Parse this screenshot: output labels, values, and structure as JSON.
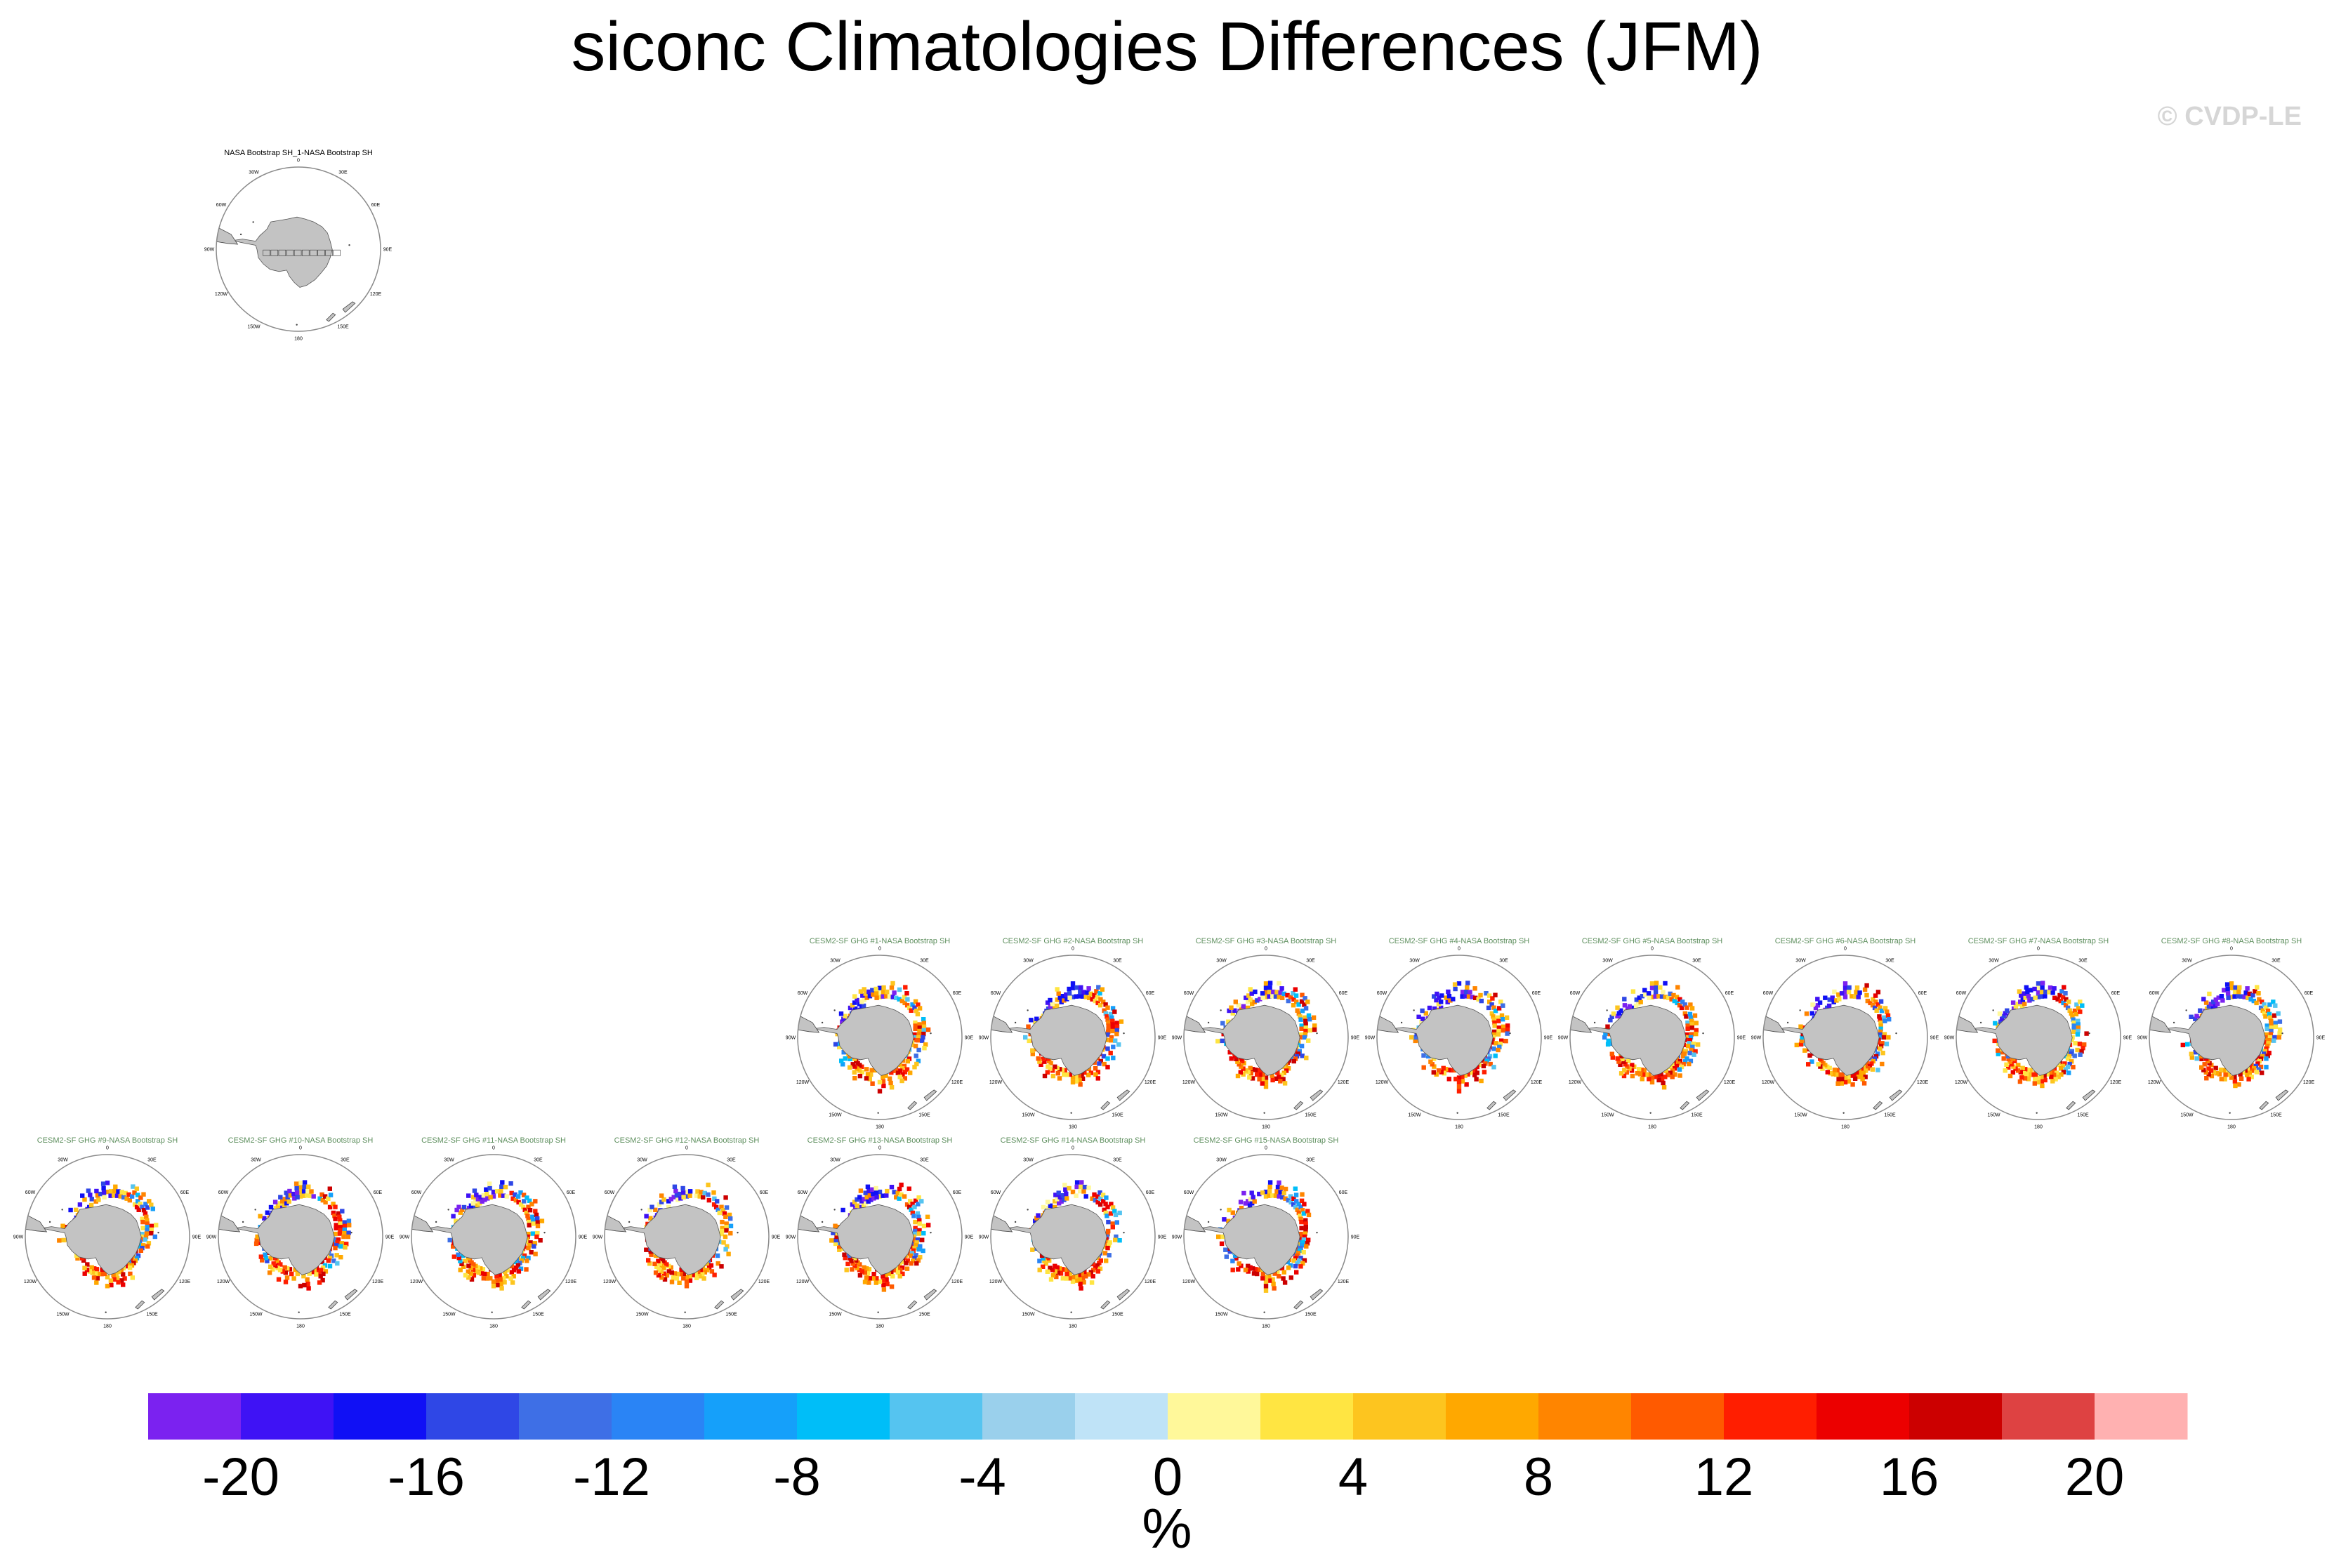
{
  "figure": {
    "title": "siconc Climatologies Differences (JFM)",
    "watermark": "© CVDP-LE"
  },
  "chart_data": {
    "type": "heatmap",
    "projection": "south-polar-stereographic",
    "variable": "siconc",
    "season": "JFM",
    "units": "%",
    "colorbar": {
      "levels": [
        -22,
        -20,
        -18,
        -16,
        -14,
        -12,
        -10,
        -8,
        -6,
        -4,
        -2,
        0,
        2,
        4,
        6,
        8,
        10,
        12,
        14,
        16,
        18,
        20,
        22
      ],
      "tick_labels": [
        "-20",
        "-16",
        "-12",
        "-8",
        "-4",
        "0",
        "4",
        "8",
        "12",
        "16",
        "20"
      ],
      "tick_values": [
        -20,
        -16,
        -12,
        -8,
        -4,
        0,
        4,
        8,
        12,
        16,
        20
      ],
      "colors": [
        "#7b22f0",
        "#3f12f5",
        "#1010f5",
        "#2f47e6",
        "#3e6fe6",
        "#2a84f5",
        "#15a0fa",
        "#00bef8",
        "#55c4f0",
        "#9ad0ec",
        "#bfe3f7",
        "#fff89a",
        "#ffe542",
        "#fdc51f",
        "#ffa800",
        "#ff8500",
        "#ff5a00",
        "#ff1e00",
        "#ec0000",
        "#cc0000",
        "#de4242",
        "#ffb1b1"
      ],
      "label": "%"
    },
    "lon_labels": [
      "0",
      "30E",
      "60E",
      "90E",
      "120E",
      "150E",
      "180",
      "150W",
      "120W",
      "90W",
      "60W",
      "30W"
    ],
    "panels": [
      {
        "title": "NASA Bootstrap SH_1-NASA Bootstrap SH",
        "type": "obs"
      },
      {
        "title": "CESM2-SF GHG #1-NASA Bootstrap SH",
        "type": "member"
      },
      {
        "title": "CESM2-SF GHG #2-NASA Bootstrap SH",
        "type": "member"
      },
      {
        "title": "CESM2-SF GHG #3-NASA Bootstrap SH",
        "type": "member"
      },
      {
        "title": "CESM2-SF GHG #4-NASA Bootstrap SH",
        "type": "member"
      },
      {
        "title": "CESM2-SF GHG #5-NASA Bootstrap SH",
        "type": "member"
      },
      {
        "title": "CESM2-SF GHG #6-NASA Bootstrap SH",
        "type": "member"
      },
      {
        "title": "CESM2-SF GHG #7-NASA Bootstrap SH",
        "type": "member"
      },
      {
        "title": "CESM2-SF GHG #8-NASA Bootstrap SH",
        "type": "member"
      },
      {
        "title": "CESM2-SF GHG #9-NASA Bootstrap SH",
        "type": "member"
      },
      {
        "title": "CESM2-SF GHG #10-NASA Bootstrap SH",
        "type": "member"
      },
      {
        "title": "CESM2-SF GHG #11-NASA Bootstrap SH",
        "type": "member"
      },
      {
        "title": "CESM2-SF GHG #12-NASA Bootstrap SH",
        "type": "member"
      },
      {
        "title": "CESM2-SF GHG #13-NASA Bootstrap SH",
        "type": "member"
      },
      {
        "title": "CESM2-SF GHG #14-NASA Bootstrap SH",
        "type": "member"
      },
      {
        "title": "CESM2-SF GHG #15-NASA Bootstrap SH",
        "type": "member"
      }
    ]
  }
}
